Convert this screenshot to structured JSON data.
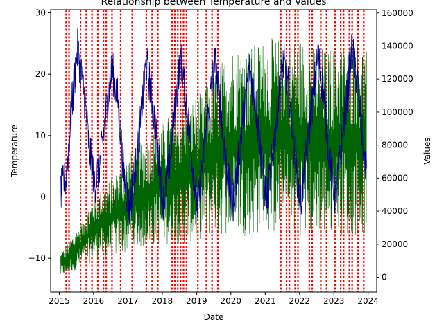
{
  "chart_data": {
    "type": "line",
    "title": "Relationship between Temperature and Values",
    "xlabel": "Date",
    "ylabel_left": "Temperature",
    "ylabel_right": "Values",
    "x_range": [
      "2014-10-01",
      "2024-04-01"
    ],
    "ylim_left": [
      -15.5,
      30.5
    ],
    "ylim_right": [
      -9000,
      162000
    ],
    "x_ticks": [
      "2015",
      "2016",
      "2017",
      "2018",
      "2019",
      "2020",
      "2021",
      "2022",
      "2023",
      "2024"
    ],
    "y_ticks_left": [
      -10,
      0,
      10,
      20,
      30
    ],
    "y_ticks_right": [
      0,
      20000,
      40000,
      60000,
      80000,
      100000,
      120000,
      140000,
      160000
    ],
    "grid": false,
    "series": [
      {
        "axis": "left",
        "color": "#00008b",
        "type": "line",
        "x": [
          "2015-01",
          "2015-03",
          "2015-05",
          "2015-07",
          "2015-09",
          "2015-11",
          "2016-01",
          "2016-03",
          "2016-05",
          "2016-07",
          "2016-09",
          "2016-11",
          "2017-01",
          "2017-03",
          "2017-05",
          "2017-07",
          "2017-09",
          "2017-11",
          "2018-01",
          "2018-03",
          "2018-05",
          "2018-07",
          "2018-09",
          "2018-11",
          "2019-01",
          "2019-03",
          "2019-05",
          "2019-07",
          "2019-09",
          "2019-11",
          "2020-01",
          "2020-03",
          "2020-05",
          "2020-07",
          "2020-09",
          "2020-11",
          "2021-01",
          "2021-03",
          "2021-05",
          "2021-07",
          "2021-09",
          "2021-11",
          "2022-01",
          "2022-03",
          "2022-05",
          "2022-07",
          "2022-09",
          "2022-11",
          "2023-01",
          "2023-03",
          "2023-05",
          "2023-07",
          "2023-09",
          "2023-11",
          "2023-12"
        ],
        "y": [
          1,
          3,
          15,
          24,
          18,
          8,
          2,
          6,
          14,
          21,
          16,
          4,
          -2,
          4,
          12,
          22,
          16,
          7,
          -1,
          5,
          14,
          23,
          15,
          6,
          -2,
          7,
          15,
          22,
          14,
          5,
          -2,
          5,
          14,
          21,
          16,
          7,
          -1,
          6,
          15,
          22,
          17,
          6,
          -1,
          7,
          15,
          23,
          17,
          6,
          0,
          7,
          16,
          24,
          18,
          7,
          5
        ]
      },
      {
        "axis": "right",
        "color": "#006400",
        "type": "line",
        "x": [
          "2015-01",
          "2015-07",
          "2016-01",
          "2016-07",
          "2017-01",
          "2017-07",
          "2018-01",
          "2018-07",
          "2019-01",
          "2019-07",
          "2020-01",
          "2020-07",
          "2021-01",
          "2021-07",
          "2022-01",
          "2022-07",
          "2023-01",
          "2023-07",
          "2023-12"
        ],
        "y_min": [
          0,
          5000,
          10000,
          12000,
          15000,
          18000,
          20000,
          20000,
          22000,
          25000,
          25000,
          25000,
          25000,
          25000,
          25000,
          25000,
          25000,
          25000,
          25000
        ],
        "y_max": [
          15000,
          30000,
          50000,
          60000,
          75000,
          85000,
          95000,
          105000,
          110000,
          125000,
          140000,
          140000,
          145000,
          145000,
          145000,
          140000,
          140000,
          145000,
          140000
        ]
      }
    ],
    "vertical_markers": {
      "color": "#ff0000",
      "style": "dotted",
      "dates": [
        "2015-03",
        "2015-04",
        "2015-08",
        "2015-10",
        "2015-12",
        "2016-02",
        "2016-04",
        "2016-05",
        "2016-07",
        "2016-10",
        "2017-02",
        "2017-07",
        "2017-09",
        "2017-11",
        "2018-04",
        "2018-05",
        "2018-06",
        "2018-07",
        "2018-08",
        "2018-09",
        "2019-01",
        "2019-04",
        "2019-06",
        "2019-08",
        "2021-06",
        "2021-08",
        "2021-09",
        "2021-11",
        "2021-12",
        "2022-04",
        "2022-05",
        "2022-08",
        "2022-10",
        "2023-01",
        "2023-03",
        "2023-04",
        "2023-06",
        "2023-07",
        "2023-09",
        "2023-11"
      ]
    }
  }
}
